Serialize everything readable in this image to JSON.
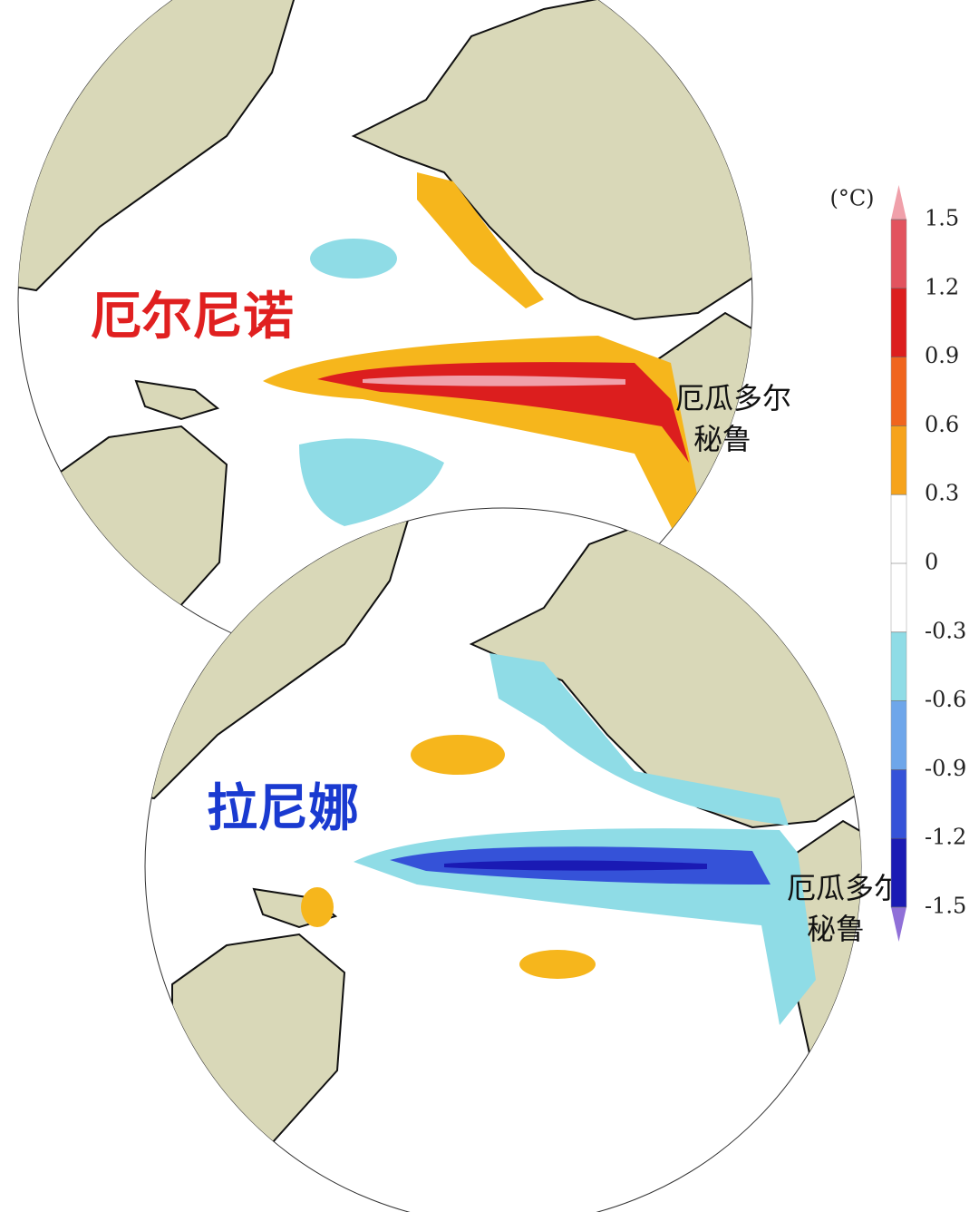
{
  "maps": [
    {
      "label": "厄尔尼诺",
      "places": [
        "厄瓜多尔",
        "秘鲁"
      ]
    },
    {
      "label": "拉尼娜",
      "places": [
        "厄瓜多尔",
        "秘鲁"
      ]
    }
  ],
  "colorbar": {
    "unit": "(°C)",
    "ticks": [
      1.5,
      1.2,
      0.9,
      0.6,
      0.3,
      0,
      -0.3,
      -0.6,
      -0.9,
      -1.2,
      -1.5
    ],
    "colors": [
      "#e2535e",
      "#dc1e1e",
      "#f0651e",
      "#f6a31c",
      "#ffffff",
      "#ffffff",
      "#8fdce6",
      "#6ea6ea",
      "#3552d8",
      "#1a1ab4"
    ],
    "end_colors": [
      "#f0a0aa",
      "#9070d8"
    ]
  }
}
